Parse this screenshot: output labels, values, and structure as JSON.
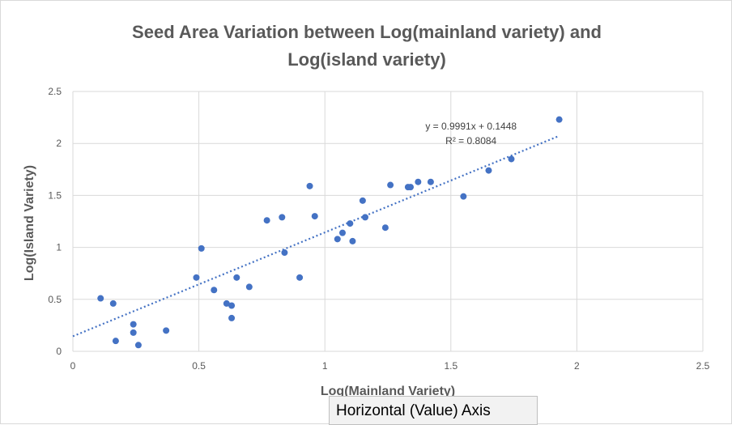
{
  "chart_data": {
    "type": "scatter",
    "title_line1": "Seed Area Variation between Log(mainland variety) and",
    "title_line2": "Log(island variety)",
    "xlabel": "Log(Mainland Variety)",
    "ylabel": "Log(Island Variety)",
    "xlim": [
      0,
      2.5
    ],
    "ylim": [
      0,
      2.5
    ],
    "x_ticks": [
      "0",
      "0.5",
      "1",
      "1.5",
      "2",
      "2.5"
    ],
    "y_ticks": [
      "0",
      "0.5",
      "1",
      "1.5",
      "2",
      "2.5"
    ],
    "grid": true,
    "marker_color": "#4472c4",
    "trendline": {
      "type": "linear",
      "slope": 0.9991,
      "intercept": 0.1448,
      "x_range": [
        0,
        1.93
      ],
      "equation": "y = 0.9991x + 0.1448",
      "r_squared": "R² = 0.8084",
      "style": "dotted"
    },
    "points": [
      {
        "x": 0.11,
        "y": 0.51
      },
      {
        "x": 0.16,
        "y": 0.46
      },
      {
        "x": 0.17,
        "y": 0.1
      },
      {
        "x": 0.24,
        "y": 0.26
      },
      {
        "x": 0.24,
        "y": 0.18
      },
      {
        "x": 0.26,
        "y": 0.06
      },
      {
        "x": 0.37,
        "y": 0.2
      },
      {
        "x": 0.49,
        "y": 0.71
      },
      {
        "x": 0.51,
        "y": 0.99
      },
      {
        "x": 0.56,
        "y": 0.59
      },
      {
        "x": 0.61,
        "y": 0.46
      },
      {
        "x": 0.63,
        "y": 0.44
      },
      {
        "x": 0.63,
        "y": 0.32
      },
      {
        "x": 0.65,
        "y": 0.71
      },
      {
        "x": 0.7,
        "y": 0.62
      },
      {
        "x": 0.77,
        "y": 1.26
      },
      {
        "x": 0.83,
        "y": 1.29
      },
      {
        "x": 0.84,
        "y": 0.95
      },
      {
        "x": 0.9,
        "y": 0.71
      },
      {
        "x": 0.94,
        "y": 1.59
      },
      {
        "x": 0.96,
        "y": 1.3
      },
      {
        "x": 1.05,
        "y": 1.08
      },
      {
        "x": 1.07,
        "y": 1.14
      },
      {
        "x": 1.1,
        "y": 1.23
      },
      {
        "x": 1.11,
        "y": 1.06
      },
      {
        "x": 1.15,
        "y": 1.45
      },
      {
        "x": 1.16,
        "y": 1.29
      },
      {
        "x": 1.24,
        "y": 1.19
      },
      {
        "x": 1.26,
        "y": 1.6
      },
      {
        "x": 1.33,
        "y": 1.58
      },
      {
        "x": 1.34,
        "y": 1.58
      },
      {
        "x": 1.37,
        "y": 1.63
      },
      {
        "x": 1.42,
        "y": 1.63
      },
      {
        "x": 1.55,
        "y": 1.49
      },
      {
        "x": 1.65,
        "y": 1.74
      },
      {
        "x": 1.74,
        "y": 1.85
      },
      {
        "x": 1.93,
        "y": 2.23
      }
    ]
  },
  "tooltip": {
    "text": "Horizontal (Value) Axis"
  }
}
